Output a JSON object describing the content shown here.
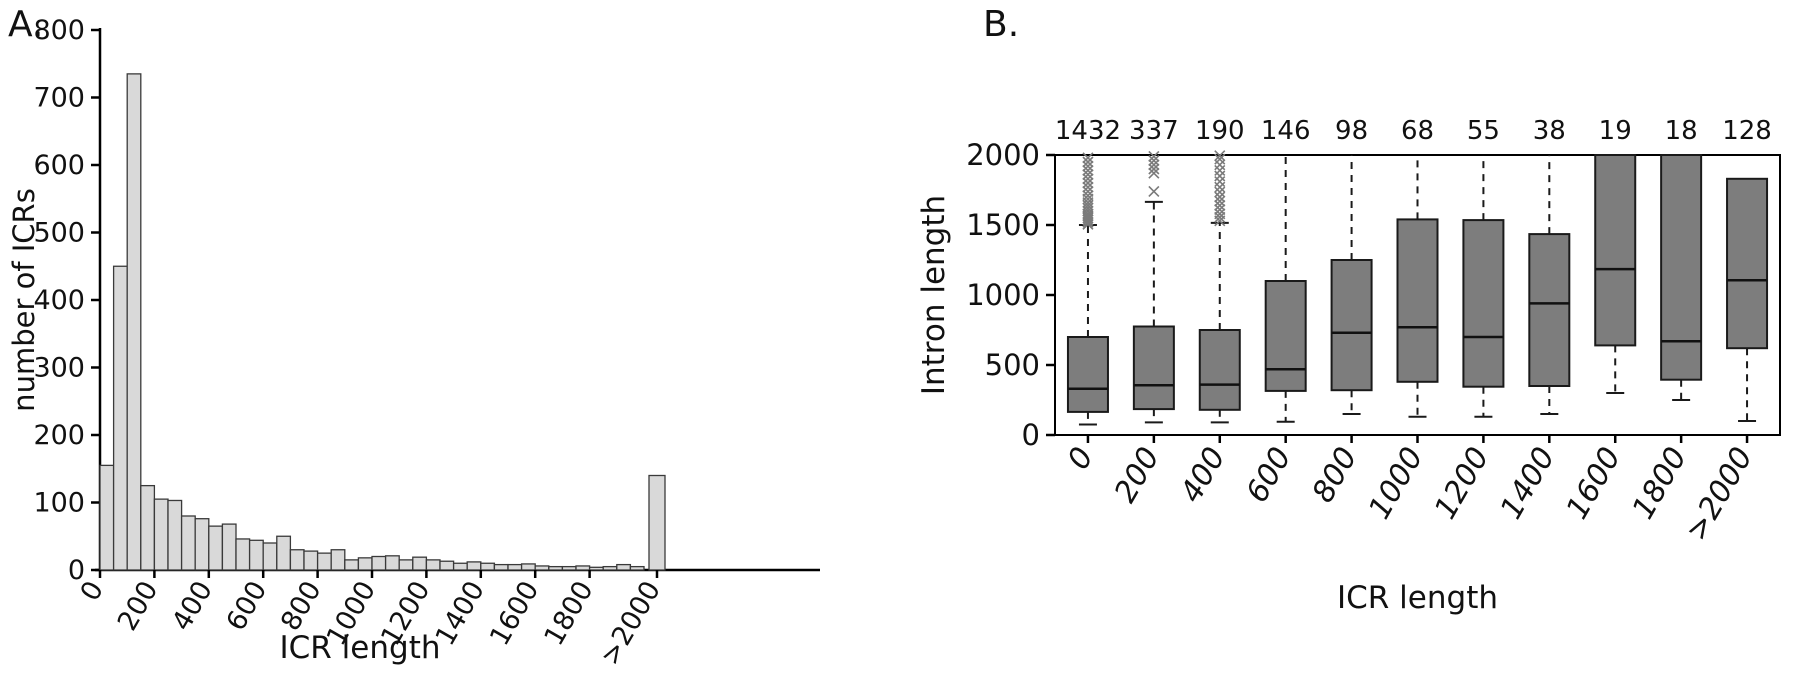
{
  "figure": {
    "background": "#ffffff",
    "text_color": "#111111"
  },
  "chart_data": [
    {
      "type": "bar",
      "panel_label": "A.",
      "title": "",
      "xlabel": "ICR length",
      "ylabel": "number of ICRs",
      "ylim": [
        0,
        800
      ],
      "yticks": [
        0,
        100,
        200,
        300,
        400,
        500,
        600,
        700,
        800
      ],
      "xtick_labels": [
        "0",
        "200",
        "400",
        "600",
        "800",
        "1000",
        "1200",
        "1400",
        "1600",
        "1800",
        ">2000"
      ],
      "bin_start": 0,
      "bin_width": 50,
      "bar_fill": "#d9d9d9",
      "bar_edge": "#3a3a3a",
      "grid": false,
      "legend": "none",
      "values": [
        155,
        450,
        735,
        125,
        105,
        103,
        80,
        76,
        65,
        68,
        46,
        44,
        40,
        50,
        30,
        28,
        25,
        30,
        15,
        18,
        20,
        21,
        15,
        19,
        15,
        13,
        10,
        12,
        10,
        8,
        8,
        9,
        6,
        5,
        5,
        6,
        4,
        5,
        8,
        5
      ],
      "overflow_bar": {
        "label": ">2000",
        "value": 140
      }
    },
    {
      "type": "boxplot",
      "panel_label": "B.",
      "title": "",
      "xlabel": "ICR length",
      "ylabel": "Intron length",
      "ylim": [
        0,
        2000
      ],
      "yticks": [
        0,
        500,
        1000,
        1500,
        2000
      ],
      "categories": [
        "0",
        "200",
        "400",
        "600",
        "800",
        "1000",
        "1200",
        "1400",
        "1600",
        "1800",
        ">2000"
      ],
      "counts": [
        1432,
        337,
        190,
        146,
        98,
        68,
        55,
        38,
        19,
        18,
        128
      ],
      "box_fill": "#7d7d7d",
      "box_edge": "#1a1a1a",
      "outlier_color": "#7a7a7a",
      "grid": false,
      "legend": "none",
      "boxes": [
        {
          "q1": 165,
          "median": 330,
          "q3": 700,
          "lo": 75,
          "hi": 1500,
          "outliers": [
            1505,
            1520,
            1535,
            1550,
            1565,
            1580,
            1600,
            1620,
            1640,
            1660,
            1685,
            1710,
            1740,
            1770,
            1800,
            1830,
            1860,
            1890,
            1920,
            1950,
            1980
          ]
        },
        {
          "q1": 185,
          "median": 355,
          "q3": 775,
          "lo": 90,
          "hi": 1665,
          "outliers": [
            1740,
            1870,
            1900,
            1930,
            1960,
            1990
          ]
        },
        {
          "q1": 180,
          "median": 360,
          "q3": 750,
          "lo": 90,
          "hi": 1515,
          "outliers": [
            1530,
            1555,
            1580,
            1610,
            1640,
            1670,
            1700,
            1735,
            1770,
            1810,
            1850,
            1890,
            1930,
            1970,
            1995
          ]
        },
        {
          "q1": 315,
          "median": 470,
          "q3": 1100,
          "lo": 95,
          "hi": 2000,
          "outliers": []
        },
        {
          "q1": 320,
          "median": 730,
          "q3": 1250,
          "lo": 150,
          "hi": 2000,
          "outliers": []
        },
        {
          "q1": 380,
          "median": 770,
          "q3": 1540,
          "lo": 130,
          "hi": 2000,
          "outliers": []
        },
        {
          "q1": 345,
          "median": 700,
          "q3": 1535,
          "lo": 130,
          "hi": 2000,
          "outliers": []
        },
        {
          "q1": 350,
          "median": 940,
          "q3": 1435,
          "lo": 150,
          "hi": 2000,
          "outliers": []
        },
        {
          "q1": 640,
          "median": 1185,
          "q3": 2000,
          "lo": 300,
          "hi": null,
          "outliers": []
        },
        {
          "q1": 395,
          "median": 670,
          "q3": 2000,
          "lo": 250,
          "hi": null,
          "outliers": []
        },
        {
          "q1": 620,
          "median": 1105,
          "q3": 1830,
          "lo": 100,
          "hi": null,
          "outliers": []
        }
      ]
    }
  ]
}
